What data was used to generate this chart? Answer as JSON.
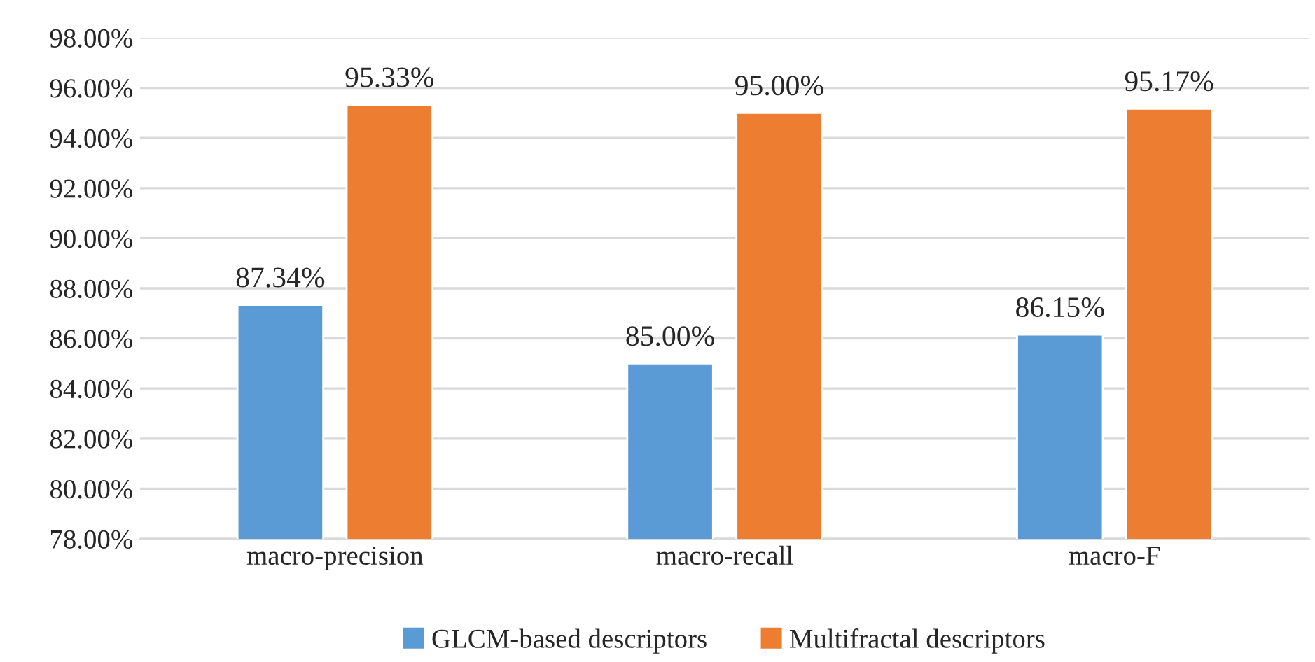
{
  "chart_data": {
    "type": "bar",
    "categories": [
      "macro-precision",
      "macro-recall",
      "macro-F"
    ],
    "series": [
      {
        "name": "GLCM-based descriptors",
        "color": "#5b9bd5",
        "values": [
          87.34,
          85.0,
          86.15
        ],
        "value_labels": [
          "87.34%",
          "85.00%",
          "86.15%"
        ]
      },
      {
        "name": "Multifractal descriptors",
        "color": "#ed7d31",
        "values": [
          95.33,
          95.0,
          95.17
        ],
        "value_labels": [
          "95.33%",
          "95.00%",
          "95.17%"
        ]
      }
    ],
    "ylim": [
      78,
      98
    ],
    "yticks": [
      {
        "value": 78,
        "label": "78.00%"
      },
      {
        "value": 80,
        "label": "80.00%"
      },
      {
        "value": 82,
        "label": "82.00%"
      },
      {
        "value": 84,
        "label": "84.00%"
      },
      {
        "value": 86,
        "label": "86.00%"
      },
      {
        "value": 88,
        "label": "88.00%"
      },
      {
        "value": 90,
        "label": "90.00%"
      },
      {
        "value": 92,
        "label": "92.00%"
      },
      {
        "value": 94,
        "label": "94.00%"
      },
      {
        "value": 96,
        "label": "96.00%"
      },
      {
        "value": 98,
        "label": "98.00%"
      }
    ],
    "grid": "y",
    "legend": "bottom"
  }
}
